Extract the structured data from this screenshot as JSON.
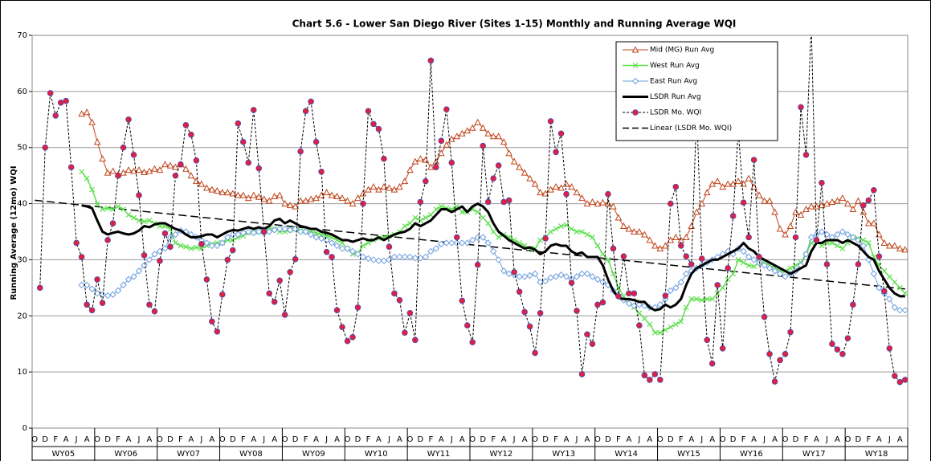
{
  "chart_data": {
    "type": "line",
    "title": "Chart 5.6 - Lower San Diego River (Sites 1-15) Monthly and Running Average WQI",
    "y_label": "Running Average (12mo) WQI",
    "ylim": [
      0,
      70
    ],
    "yticks": [
      0,
      10,
      20,
      30,
      40,
      50,
      60,
      70
    ],
    "grid": true,
    "legend_position": "upper right",
    "categories": [
      "O",
      null,
      "D",
      null,
      "F",
      null,
      "A",
      null,
      "J",
      null,
      "A",
      null,
      "O",
      null,
      "D",
      null,
      "F",
      null,
      "A",
      null,
      "J",
      null,
      "A",
      null,
      "O",
      null,
      "D",
      null,
      "F",
      null,
      "A",
      null,
      "J",
      null,
      "A",
      null,
      "O",
      null,
      "D",
      null,
      "F",
      null,
      "A",
      null,
      "J",
      null,
      "A",
      null,
      "O",
      null,
      "D",
      null,
      "F",
      null,
      "A",
      null,
      "J",
      null,
      "A",
      null,
      "O",
      null,
      "D",
      null,
      "F",
      null,
      "A",
      null,
      "J",
      null,
      "A",
      null,
      "O",
      null,
      "D",
      null,
      "F",
      null,
      "A",
      null,
      "J",
      null,
      "A",
      null,
      "O",
      null,
      "D",
      null,
      "F",
      null,
      "A",
      null,
      "J",
      null,
      "A",
      null,
      "O",
      null,
      "D",
      null,
      "F",
      null,
      "A",
      null,
      "J",
      null,
      "A",
      null,
      "O",
      null,
      "D",
      null,
      "F",
      null,
      "A",
      null,
      "J",
      null,
      "A",
      null,
      "O",
      null,
      "D",
      null,
      "F",
      null,
      "A",
      null,
      "J",
      null,
      "A",
      null,
      "O",
      null,
      "D",
      null,
      "F",
      null,
      "A",
      null,
      "J",
      null,
      "A",
      null,
      "O",
      null,
      "D",
      null,
      "F",
      null,
      "A",
      null,
      "J",
      null,
      "A",
      null,
      "O",
      null,
      "D",
      null,
      "F",
      null,
      "A",
      null,
      "J",
      null,
      "A",
      null
    ],
    "groups": [
      "WY05",
      "WY06",
      "WY07",
      "WY08",
      "WY09",
      "WY10",
      "WY11",
      "WY12",
      "WY13",
      "WY14",
      "WY15",
      "WY16",
      "WY17",
      "WY18"
    ],
    "series": [
      {
        "name": "Mid (MG) Run Avg",
        "color": "#c0441a",
        "marker": "triangle",
        "width": 1,
        "dash": false,
        "values": [
          null,
          null,
          null,
          null,
          null,
          null,
          null,
          null,
          null,
          56,
          56.3,
          54.5,
          51,
          48,
          45.5,
          45.8,
          45.2,
          45.5,
          46,
          45.8,
          46,
          45.6,
          45.8,
          46.2,
          46,
          47,
          46.8,
          46.5,
          47,
          46.2,
          45,
          44,
          43.5,
          42.8,
          42.5,
          42.3,
          42,
          42,
          41.8,
          41.5,
          41.5,
          41,
          41.5,
          41.2,
          40.8,
          40.5,
          41.3,
          41.5,
          40,
          39.7,
          39.5,
          40.5,
          40.5,
          40.8,
          41,
          41.5,
          42,
          41.5,
          41.3,
          41,
          40.5,
          40,
          41,
          41.8,
          42.5,
          43,
          42.5,
          43,
          42.8,
          42.5,
          43,
          44,
          46,
          47.5,
          48,
          47.8,
          46.5,
          47.5,
          49,
          50.5,
          51.5,
          52,
          52.5,
          53,
          53.5,
          54.5,
          53.5,
          52.5,
          52,
          52,
          51,
          49,
          47.5,
          46.5,
          45.5,
          44.5,
          43.5,
          42,
          41.8,
          42.5,
          43,
          42.8,
          43.5,
          43,
          42,
          41,
          40,
          40.3,
          40,
          40.2,
          40,
          39.5,
          37.5,
          36,
          35.5,
          35,
          35,
          34.5,
          33.5,
          32.5,
          32,
          32.5,
          33.5,
          34,
          33.5,
          34,
          36,
          38.5,
          40,
          42,
          43.5,
          44,
          43,
          43.5,
          43.5,
          44,
          43.5,
          44.5,
          43,
          41.5,
          40.5,
          40.5,
          38.5,
          35.5,
          34.5,
          36,
          38.5,
          38,
          39,
          39.5,
          39.5,
          39.7,
          40,
          40.3,
          40.5,
          41,
          40,
          39,
          40.5,
          38.5,
          36.5,
          36.5,
          34.5,
          33,
          32.5,
          32.5,
          32,
          31.8
        ]
      },
      {
        "name": "West Run Avg",
        "color": "#5fe04f",
        "marker": "x",
        "width": 1.5,
        "dash": false,
        "values": [
          null,
          null,
          null,
          null,
          null,
          null,
          null,
          null,
          null,
          45.7,
          44.5,
          42.5,
          40,
          39,
          39.2,
          39,
          39.5,
          39,
          38,
          37.5,
          37,
          36.8,
          37,
          36.5,
          36,
          36,
          35.5,
          33,
          32.5,
          32.3,
          32,
          32.2,
          32,
          32.5,
          32.8,
          33,
          33,
          33.5,
          33.5,
          34,
          34.3,
          34.8,
          35,
          35,
          35.2,
          35.5,
          35.5,
          35,
          35,
          35.3,
          35.5,
          35.2,
          35,
          35,
          34.8,
          34.5,
          34.3,
          34,
          33.5,
          33,
          32,
          31,
          31.2,
          32.5,
          33,
          33.5,
          33.8,
          34,
          34.2,
          34.5,
          35,
          36,
          36.5,
          37.5,
          37,
          37.5,
          38,
          39,
          39.5,
          39.2,
          39,
          39.5,
          38.5,
          38.5,
          39,
          38.5,
          37.5,
          36.5,
          35,
          34,
          34.5,
          34,
          33.5,
          33,
          32.5,
          32,
          32,
          33.5,
          34,
          35,
          35.5,
          36,
          36.2,
          35.5,
          35,
          35,
          34.5,
          34,
          32.5,
          31,
          30,
          27.5,
          25,
          23.5,
          22.5,
          21.5,
          20.5,
          19.5,
          18.5,
          17,
          17,
          17.5,
          18,
          18.5,
          19,
          21.5,
          23,
          23,
          22.8,
          23,
          23,
          24,
          25,
          26.5,
          27.5,
          30,
          29.5,
          29,
          28.8,
          29.5,
          29.5,
          29,
          28.5,
          28,
          28,
          28.5,
          29,
          29.5,
          31,
          33,
          33.5,
          32.5,
          33,
          33,
          32.5,
          32,
          33,
          34,
          33.8,
          33.5,
          33,
          30.5,
          29,
          28,
          27,
          26,
          25,
          24
        ]
      },
      {
        "name": "East Run Avg",
        "color": "#6f9fe0",
        "marker": "diamond",
        "width": 1,
        "dash": false,
        "values": [
          null,
          null,
          null,
          null,
          null,
          null,
          null,
          null,
          null,
          25.5,
          25.5,
          24.8,
          24,
          23.8,
          23.6,
          23.8,
          24.5,
          25.5,
          26.5,
          27,
          28,
          29,
          30,
          31,
          31.5,
          32,
          34,
          34.5,
          35.2,
          35,
          34.5,
          34,
          33.5,
          33,
          32.5,
          32.5,
          33,
          34,
          34.5,
          34.5,
          34.8,
          35,
          34.8,
          35,
          34.8,
          35,
          35.3,
          35.5,
          35.5,
          35.3,
          35.5,
          35,
          35,
          34.5,
          34,
          33.8,
          33.5,
          33,
          32.5,
          32,
          32,
          31.5,
          31,
          30.5,
          30.2,
          30,
          29.8,
          29.8,
          30,
          30.5,
          30.5,
          30.5,
          30.5,
          30.3,
          30.3,
          30.5,
          31.5,
          32,
          32.8,
          33,
          33,
          33,
          33,
          33,
          33.5,
          34,
          34,
          33,
          31.5,
          30,
          28,
          27.5,
          27.3,
          27,
          27,
          27.2,
          27.5,
          26,
          26.2,
          26.8,
          27,
          27.3,
          27,
          26.5,
          27,
          27.5,
          27.5,
          27,
          26.5,
          26,
          25.5,
          24.5,
          23.5,
          22.8,
          22.2,
          21.8,
          22,
          21.8,
          21.5,
          21.5,
          22,
          23,
          24.5,
          25,
          26,
          27.5,
          28,
          28.5,
          29,
          29.5,
          30,
          30.5,
          31,
          31.5,
          31,
          32,
          31.5,
          30.5,
          30,
          29.5,
          29,
          28.5,
          28,
          27.5,
          27,
          27.5,
          28,
          29,
          31,
          34,
          34.5,
          35,
          34.5,
          34,
          34.5,
          35,
          34.5,
          34,
          33.5,
          32.5,
          30,
          27.5,
          25,
          24,
          23,
          21.5,
          21,
          21
        ]
      },
      {
        "name": "LSDR Run Avg",
        "color": "#000000",
        "marker": "none",
        "width": 3,
        "dash": false,
        "values": [
          null,
          null,
          null,
          null,
          null,
          null,
          null,
          null,
          null,
          39.7,
          39.5,
          39.2,
          37,
          35,
          34.5,
          34.8,
          35,
          34.7,
          34.5,
          34.7,
          35.2,
          36,
          35.8,
          36.3,
          36.5,
          36.5,
          36,
          35.5,
          35.2,
          34.5,
          34,
          34,
          34.2,
          34.5,
          34.5,
          34,
          34.5,
          35,
          35.3,
          35.2,
          35.5,
          35.8,
          35.5,
          35.8,
          35.5,
          36,
          37,
          37.3,
          36.5,
          37,
          36.5,
          36,
          35.8,
          35.5,
          35.5,
          35,
          34.8,
          34.5,
          34,
          33.5,
          33.5,
          33.2,
          33.5,
          33.8,
          33.5,
          33.5,
          34,
          33.5,
          34,
          34.5,
          34.8,
          35,
          35.5,
          36.5,
          36,
          36.5,
          37,
          38,
          39,
          39,
          38.5,
          39,
          39.5,
          38.5,
          39.5,
          40,
          39.5,
          38.5,
          36.5,
          35,
          34.3,
          33.5,
          33,
          32.5,
          32,
          32.2,
          31.8,
          31,
          31.5,
          32.5,
          32.8,
          32.5,
          32.5,
          31.5,
          31,
          31.3,
          30.5,
          30.5,
          30.5,
          29,
          26.5,
          24.5,
          23.2,
          23,
          23,
          22.8,
          22.5,
          22.5,
          21.5,
          21,
          21.2,
          22,
          21.5,
          22,
          23,
          25.5,
          27.5,
          28.5,
          29,
          29.5,
          30,
          30,
          30.5,
          31,
          31.5,
          32,
          33,
          32,
          31.5,
          30.5,
          30,
          29.5,
          29,
          28.5,
          28,
          27.5,
          28,
          28.5,
          29,
          31.5,
          33,
          33,
          33.5,
          33.5,
          33.5,
          33,
          33.5,
          33,
          32.5,
          31.5,
          30.5,
          30,
          28,
          26.5,
          25,
          24,
          23.5,
          23.5
        ]
      },
      {
        "name": "LSDR Mo. WQI",
        "color": "#000000",
        "marker": "circle",
        "marker_color": "#e0203c",
        "width": 1,
        "dash": true,
        "values": [
          null,
          25,
          50,
          59.7,
          55.7,
          58,
          58.3,
          46.5,
          33,
          30.5,
          22,
          21,
          26.5,
          22.3,
          33.5,
          36.5,
          45,
          50,
          55,
          48.7,
          41.5,
          30.8,
          22,
          20.8,
          29.8,
          34.7,
          32.3,
          45,
          47,
          54,
          52.3,
          47.7,
          32.8,
          26.5,
          19,
          17.2,
          23.8,
          30,
          31.7,
          54.3,
          51,
          47.3,
          56.7,
          46.3,
          35,
          24,
          22.5,
          26.3,
          20.2,
          27.8,
          30.1,
          49.3,
          56.5,
          58.2,
          51,
          45.7,
          31.4,
          30.5,
          21,
          18,
          15.5,
          16.2,
          21.5,
          40,
          56.5,
          54.2,
          53.3,
          48,
          32.3,
          24,
          22.8,
          17,
          20.5,
          15.7,
          40.3,
          44,
          65.5,
          46.5,
          51.2,
          56.8,
          47.3,
          34,
          22.7,
          18.3,
          15.3,
          29.1,
          50.3,
          40.3,
          44.5,
          46.8,
          40.3,
          40.6,
          27.8,
          24.3,
          20.7,
          18.1,
          13.4,
          20.5,
          33.8,
          54.7,
          49.2,
          52.5,
          41.7,
          25.9,
          20.9,
          9.6,
          16.7,
          15,
          22,
          22.4,
          41.7,
          32,
          23.5,
          30.6,
          24,
          24,
          18.3,
          9.4,
          8.6,
          9.6,
          8.6,
          23.6,
          40,
          43,
          32.5,
          30.6,
          29.2,
          57,
          30.2,
          15.7,
          11.5,
          25.5,
          14.2,
          28.5,
          37.8,
          53,
          40.2,
          34,
          47.8,
          30.5,
          19.8,
          13.2,
          8.3,
          12.1,
          13.2,
          17.1,
          34,
          57.2,
          48.7,
          72,
          33.5,
          43.7,
          29.2,
          15,
          14,
          13.2,
          16,
          22,
          29.2,
          39.7,
          40.6,
          42.4,
          30.6,
          24.4,
          14.2,
          9.3,
          8.2,
          8.6
        ]
      }
    ],
    "trend": {
      "name": "Linear (LSDR Mo. WQI)",
      "color": "#000000",
      "values": [
        40.6,
        24.8
      ]
    }
  }
}
